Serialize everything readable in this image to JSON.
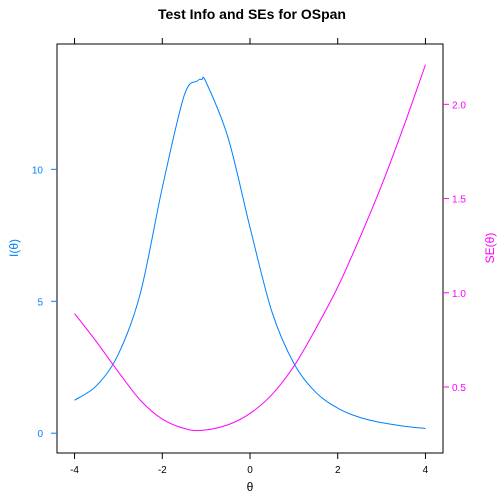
{
  "chart_data": {
    "type": "line",
    "title": "Test Info and SEs for OSpan",
    "xlabel": "θ",
    "ylabel_left": "I(θ)",
    "ylabel_right": "SE(θ)",
    "xlim": [
      -4.4,
      4.4
    ],
    "ylim_left": [
      -0.75,
      14.75
    ],
    "ylim_right": [
      0.15,
      2.32
    ],
    "x_ticks": [
      -4,
      -2,
      0,
      2,
      4
    ],
    "x_tick_labels": [
      "-4",
      "-2",
      "0",
      "2",
      "4"
    ],
    "y_left_ticks": [
      0,
      5,
      10
    ],
    "y_left_tick_labels": [
      "0",
      "5",
      "10"
    ],
    "y_right_ticks": [
      0.5,
      1.0,
      1.5,
      2.0
    ],
    "y_right_tick_labels": [
      "0.5",
      "1.0",
      "1.5",
      "2.0"
    ],
    "grid": false,
    "colors": {
      "info": "#0080ff",
      "se": "#ff00ff",
      "axis": "#000000"
    },
    "series": [
      {
        "axis": "left",
        "color": "#0080ff",
        "x": [
          -4,
          -3.5,
          -3,
          -2.5,
          -2,
          -1.5,
          -1.2,
          -1.1,
          -1,
          -0.5,
          0,
          0.5,
          1,
          1.5,
          2,
          2.5,
          3,
          3.5,
          4
        ],
        "values": [
          1.25,
          1.8,
          3.0,
          5.3,
          9.3,
          12.8,
          13.35,
          13.4,
          13.3,
          11.2,
          7.8,
          4.6,
          2.65,
          1.55,
          0.95,
          0.6,
          0.4,
          0.27,
          0.18
        ]
      },
      {
        "axis": "right",
        "color": "#ff00ff",
        "x": [
          -4,
          -3.5,
          -3,
          -2.5,
          -2,
          -1.5,
          -1.1,
          -0.5,
          0,
          0.5,
          1,
          1.5,
          2,
          2.5,
          3,
          3.5,
          4
        ],
        "values": [
          0.89,
          0.74,
          0.58,
          0.43,
          0.33,
          0.28,
          0.27,
          0.3,
          0.36,
          0.46,
          0.61,
          0.81,
          1.03,
          1.29,
          1.57,
          1.88,
          2.21
        ]
      }
    ]
  }
}
